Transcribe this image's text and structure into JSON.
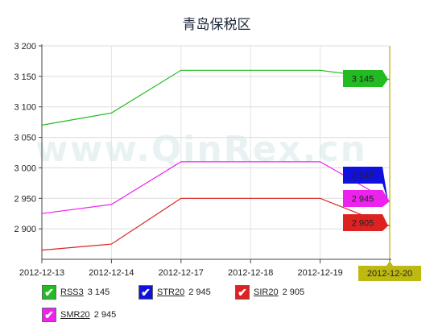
{
  "chart_data": {
    "type": "line",
    "title": "青岛保税区",
    "watermark": "www.QinRex.cn",
    "categories": [
      "2012-12-13",
      "2012-12-14",
      "2012-12-17",
      "2012-12-18",
      "2012-12-19",
      "2012-12-20"
    ],
    "ylim": [
      2850,
      3200
    ],
    "yticks": [
      2900,
      2950,
      3000,
      3050,
      3100,
      3150,
      3200
    ],
    "ytick_labels": [
      "2 900",
      "2 950",
      "3 000",
      "3 050",
      "3 100",
      "3 150",
      "3 200"
    ],
    "highlight_category": "2012-12-20",
    "grid": true,
    "legend_position": "bottom",
    "series": [
      {
        "name": "RSS3",
        "color": "#22bb22",
        "values": [
          3070,
          3090,
          3160,
          3160,
          3160,
          3145
        ],
        "end_label": "3 145",
        "legend_value": "3 145"
      },
      {
        "name": "STR20",
        "color": "#1111dd",
        "values": [
          null,
          null,
          null,
          null,
          null,
          2945
        ],
        "end_label": "2 945",
        "legend_value": "2 945"
      },
      {
        "name": "SIR20",
        "color": "#dd2222",
        "values": [
          2865,
          2875,
          2950,
          2950,
          2950,
          2905
        ],
        "end_label": "2 905",
        "legend_value": "2 905"
      },
      {
        "name": "SMR20",
        "color": "#ee22ee",
        "values": [
          2925,
          2940,
          3010,
          3010,
          3010,
          2945
        ],
        "end_label": "2 945",
        "legend_value": "2 945"
      }
    ]
  }
}
